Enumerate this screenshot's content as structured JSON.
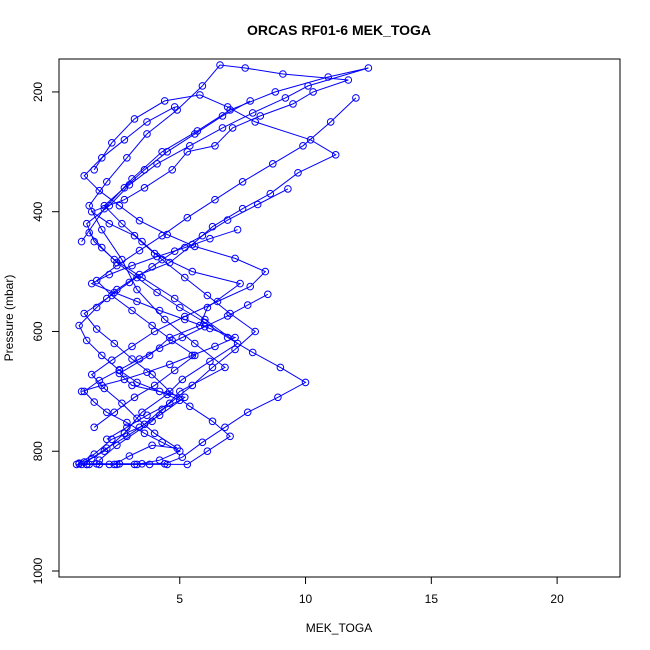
{
  "chart_data": {
    "type": "scatter",
    "title": "ORCAS RF01-6 MEK_TOGA",
    "xlabel": "MEK_TOGA",
    "ylabel": "Pressure (mbar)",
    "xlim": [
      0.2,
      22.5
    ],
    "ylim": [
      1010,
      145
    ],
    "y_reversed": true,
    "x_ticks": [
      5,
      10,
      15,
      20
    ],
    "y_ticks": [
      200,
      400,
      600,
      800,
      1000
    ],
    "grid": false,
    "legend": "none",
    "color": "#0000ff",
    "marker": "open-circle",
    "connected": true,
    "series": [
      {
        "x": [
          1.0,
          1.6,
          2.3,
          3.4,
          4.2,
          5.2,
          3.1,
          2.6,
          3.8,
          4.6,
          5.8,
          6.1,
          7.4,
          5.5,
          4.0,
          3.2,
          2.2,
          1.5,
          2.8,
          3.6,
          4.7,
          5.3,
          6.4,
          7.1,
          8.2,
          9.5,
          10.3,
          11.7,
          9.1,
          7.6,
          6.6,
          5.9,
          4.9,
          3.7,
          2.9,
          2.1,
          1.4,
          1.9,
          2.7,
          3.3,
          4.4,
          5.6,
          6.8,
          5.0,
          3.9,
          2.5,
          1.8
        ],
        "y": [
          820,
          805,
          780,
          760,
          740,
          710,
          690,
          670,
          640,
          610,
          590,
          560,
          520,
          500,
          470,
          440,
          420,
          400,
          380,
          360,
          330,
          300,
          290,
          260,
          240,
          220,
          200,
          180,
          170,
          160,
          155,
          190,
          230,
          270,
          310,
          350,
          390,
          430,
          480,
          530,
          580,
          620,
          660,
          700,
          750,
          790,
          815
        ]
      },
      {
        "x": [
          1.2,
          2.0,
          2.8,
          3.5,
          4.5,
          5.1,
          6.2,
          7.3,
          6.0,
          4.8,
          3.5,
          2.4,
          1.6,
          1.3,
          2.2,
          3.0,
          4.1,
          5.4,
          6.7,
          7.9,
          9.2,
          10.1,
          12.5,
          10.9,
          8.8,
          7.0,
          5.7,
          4.3,
          3.1,
          2.0,
          1.1
        ],
        "y": [
          818,
          800,
          770,
          735,
          705,
          680,
          650,
          620,
          580,
          545,
          510,
          480,
          450,
          420,
          390,
          355,
          320,
          290,
          260,
          235,
          210,
          190,
          160,
          175,
          200,
          230,
          265,
          300,
          345,
          395,
          450
        ]
      },
      {
        "x": [
          1.1,
          1.5,
          2.1,
          2.9,
          3.6,
          4.3,
          5.0,
          4.2,
          3.3,
          2.6,
          1.9,
          1.3,
          1.0,
          1.7,
          2.5,
          3.4,
          4.6,
          5.5,
          6.3,
          7.5,
          8.6,
          9.7,
          11.2,
          10.2,
          8.0,
          6.9,
          5.8,
          4.4,
          3.2,
          2.3,
          1.6
        ],
        "y": [
          822,
          812,
          795,
          775,
          755,
          730,
          715,
          700,
          685,
          665,
          640,
          615,
          590,
          560,
          530,
          505,
          485,
          455,
          425,
          395,
          370,
          335,
          305,
          280,
          250,
          225,
          205,
          215,
          245,
          285,
          330
        ]
      },
      {
        "x": [
          1.4,
          2.4,
          3.0,
          3.9,
          4.9,
          4.0,
          3.3,
          2.7,
          2.0,
          1.5,
          2.3,
          3.1,
          4.0,
          5.2,
          6.5,
          7.8,
          8.4,
          7.2,
          5.6,
          4.5,
          3.4,
          2.6,
          1.8,
          1.2,
          1.9,
          2.8,
          3.7,
          4.8
        ],
        "y": [
          822,
          822,
          808,
          790,
          795,
          770,
          745,
          720,
          695,
          672,
          648,
          625,
          600,
          575,
          550,
          525,
          500,
          478,
          458,
          438,
          415,
          390,
          365,
          340,
          310,
          280,
          250,
          225
        ]
      },
      {
        "x": [
          0.9,
          1.3,
          1.8,
          2.5,
          3.2,
          3.8,
          4.5,
          5.3,
          6.1,
          7.0,
          6.3,
          5.4,
          4.6,
          3.9,
          3.1,
          2.4,
          1.7,
          1.2,
          2.1,
          3.0,
          3.9,
          4.8,
          5.9,
          6.9,
          8.1,
          9.3
        ],
        "y": [
          822,
          822,
          822,
          822,
          822,
          822,
          822,
          822,
          800,
          775,
          750,
          725,
          700,
          672,
          646,
          620,
          596,
          570,
          545,
          518,
          492,
          466,
          440,
          414,
          388,
          362
        ]
      },
      {
        "x": [
          1.0,
          1.7,
          2.6,
          3.5,
          4.4,
          5.1,
          5.9,
          6.8,
          7.7,
          8.9,
          10.0,
          9.0,
          7.9,
          6.9,
          6.0,
          5.0,
          4.1,
          3.3,
          2.5,
          1.9,
          1.4
        ],
        "y": [
          821,
          821,
          821,
          821,
          821,
          810,
          785,
          760,
          735,
          710,
          685,
          660,
          635,
          610,
          585,
          560,
          535,
          510,
          485,
          460,
          435
        ]
      },
      {
        "x": [
          1.3,
          2.2,
          3.3,
          4.2,
          5.0,
          4.3,
          3.6,
          2.9,
          2.1,
          1.6,
          1.2,
          1.8,
          2.6,
          3.4,
          4.2,
          5.1,
          6.0,
          6.9,
          7.7,
          8.5
        ],
        "y": [
          822,
          822,
          822,
          815,
          800,
          785,
          770,
          752,
          735,
          718,
          700,
          682,
          664,
          646,
          628,
          610,
          592,
          574,
          556,
          538
        ]
      },
      {
        "x": [
          2.1,
          2.9,
          3.7,
          4.6,
          5.5,
          6.3,
          7.2,
          8.0,
          7.0,
          6.1,
          5.2,
          4.3,
          3.5,
          2.7,
          2.0,
          2.8,
          3.6,
          4.5,
          5.6,
          6.7,
          7.8
        ],
        "y": [
          780,
          760,
          740,
          720,
          690,
          660,
          630,
          600,
          570,
          540,
          510,
          480,
          450,
          420,
          390,
          360,
          330,
          300,
          270,
          240,
          215
        ]
      },
      {
        "x": [
          1.6,
          2.4,
          3.2,
          4.0,
          4.8,
          5.6,
          4.7,
          3.9,
          3.1,
          2.3,
          1.7,
          2.5,
          3.4,
          4.3,
          5.3,
          6.4,
          7.5,
          8.7,
          9.9,
          11.0,
          12.0
        ],
        "y": [
          760,
          735,
          710,
          690,
          665,
          640,
          615,
          590,
          565,
          540,
          515,
          490,
          465,
          440,
          410,
          380,
          350,
          320,
          290,
          250,
          210
        ]
      },
      {
        "x": [
          1.1,
          1.9,
          2.8,
          3.7,
          4.6,
          5.5,
          6.4,
          7.2,
          6.2,
          5.2,
          4.2,
          3.3,
          2.4,
          1.5,
          2.2,
          3.1,
          4.1,
          5.2,
          6.2,
          7.3
        ],
        "y": [
          700,
          690,
          680,
          668,
          655,
          640,
          625,
          610,
          595,
          580,
          565,
          550,
          535,
          520,
          505,
          490,
          475,
          460,
          445,
          430
        ]
      }
    ]
  }
}
